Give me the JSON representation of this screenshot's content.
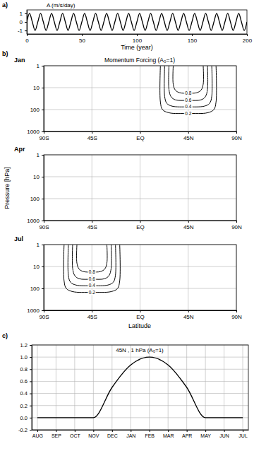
{
  "chart_data": [
    {
      "type": "line",
      "annotations": [
        "a)"
      ],
      "title": "A    (m/s/day)",
      "xlabel": "Time (year)",
      "x": [
        0,
        2.5,
        5,
        7.5,
        10,
        12.5,
        15,
        17.5,
        20,
        22.5,
        25,
        27.5,
        30,
        32.5,
        35,
        37.5,
        40,
        42.5,
        45,
        47.5,
        50,
        52.5,
        55,
        57.5,
        60,
        62.5,
        65,
        67.5,
        70,
        72.5,
        75,
        77.5,
        80,
        82.5,
        85,
        87.5,
        90,
        92.5,
        95,
        97.5,
        100,
        102.5,
        105,
        107.5,
        110,
        112.5,
        115,
        117.5,
        120,
        122.5,
        125,
        127.5,
        130,
        132.5,
        135,
        137.5,
        140,
        142.5,
        145,
        147.5,
        150,
        152.5,
        155,
        157.5,
        160,
        162.5,
        165,
        167.5,
        170,
        172.5,
        175,
        177.5,
        180,
        182.5,
        185,
        187.5,
        190,
        192.5,
        195,
        197.5,
        200
      ],
      "series": [
        {
          "color": "#000000",
          "values": [
            0,
            1,
            0,
            -1,
            0,
            1,
            0,
            -1,
            0,
            1,
            0,
            -1,
            0,
            1,
            0,
            -1,
            0,
            1,
            0,
            -1,
            0,
            1,
            0,
            -1,
            0,
            1,
            0,
            -1,
            0,
            1,
            0,
            -1,
            0,
            1,
            0,
            -1,
            0,
            1,
            0,
            -1,
            0,
            1,
            0,
            -1,
            0,
            1,
            0,
            -1,
            0,
            1,
            0,
            -1,
            0,
            1,
            0,
            -1,
            0,
            1,
            0,
            -1,
            0,
            1,
            0,
            -1,
            0,
            1,
            0,
            -1,
            0,
            1,
            0,
            -1,
            0,
            1,
            0,
            -1,
            0,
            1,
            0,
            -1,
            0
          ]
        }
      ],
      "xlim": [
        0,
        200
      ],
      "xticks": [
        0,
        50,
        100,
        150,
        200
      ],
      "ylim": [
        -1.4,
        1.4
      ],
      "yticks": [
        -1,
        0,
        1
      ],
      "grid": false
    },
    {
      "type": "contour",
      "annotations": [
        "b)"
      ],
      "subtitle": "Jan",
      "title": "Momentum Forcing (A₀=1)",
      "color": "#000000",
      "xlim": [
        -90,
        90
      ],
      "xticks": [
        {
          "value": -90,
          "label": "90S"
        },
        {
          "value": -45,
          "label": "45S"
        },
        {
          "value": 0,
          "label": "EQ"
        },
        {
          "value": 45,
          "label": "45N"
        },
        {
          "value": 90,
          "label": "90N"
        }
      ],
      "ylim": [
        1000,
        1
      ],
      "yticks": [
        1,
        10,
        100,
        1000
      ],
      "log": "y",
      "grid": true,
      "contours": [
        {
          "level": 0.8,
          "x": [
            31,
            31,
            33,
            37,
            45,
            53,
            57,
            59,
            59
          ],
          "y": [
            1,
            7,
            13,
            17,
            18,
            17,
            13,
            7,
            1
          ]
        },
        {
          "level": 0.6,
          "x": [
            27,
            27,
            29,
            33,
            45,
            57,
            61,
            63,
            63
          ],
          "y": [
            1,
            12,
            26,
            36,
            38,
            36,
            26,
            12,
            1
          ]
        },
        {
          "level": 0.4,
          "x": [
            23,
            23,
            25,
            30,
            45,
            60,
            65,
            67,
            67
          ],
          "y": [
            1,
            25,
            52,
            70,
            75,
            70,
            52,
            25,
            1
          ]
        },
        {
          "level": 0.2,
          "x": [
            19,
            19,
            21,
            27,
            45,
            63,
            69,
            71,
            71
          ],
          "y": [
            1,
            45,
            100,
            140,
            150,
            140,
            100,
            45,
            1
          ]
        }
      ]
    },
    {
      "type": "contour",
      "subtitle": "Apr",
      "ylabel": "Pressure [hPa]",
      "color": "#000000",
      "xlim": [
        -90,
        90
      ],
      "xticks": [
        {
          "value": -90,
          "label": "90S"
        },
        {
          "value": -45,
          "label": "45S"
        },
        {
          "value": 0,
          "label": "EQ"
        },
        {
          "value": 45,
          "label": "45N"
        },
        {
          "value": 90,
          "label": "90N"
        }
      ],
      "ylim": [
        1000,
        1
      ],
      "yticks": [
        1,
        10,
        100,
        1000
      ],
      "log": "y",
      "grid": true,
      "contours": []
    },
    {
      "type": "contour",
      "subtitle": "Jul",
      "xlabel": "Latitude",
      "color": "#000000",
      "xlim": [
        -90,
        90
      ],
      "xticks": [
        {
          "value": -90,
          "label": "90S"
        },
        {
          "value": -45,
          "label": "45S"
        },
        {
          "value": 0,
          "label": "EQ"
        },
        {
          "value": 45,
          "label": "45N"
        },
        {
          "value": 90,
          "label": "90N"
        }
      ],
      "ylim": [
        1000,
        1
      ],
      "yticks": [
        1,
        10,
        100,
        1000
      ],
      "log": "y",
      "grid": true,
      "contours": [
        {
          "level": 0.8,
          "x": [
            -31,
            -31,
            -33,
            -37,
            -45,
            -53,
            -57,
            -59,
            -59
          ],
          "y": [
            1,
            7,
            13,
            17,
            18,
            17,
            13,
            7,
            1
          ]
        },
        {
          "level": 0.6,
          "x": [
            -27,
            -27,
            -29,
            -33,
            -45,
            -57,
            -61,
            -63,
            -63
          ],
          "y": [
            1,
            12,
            26,
            36,
            38,
            36,
            26,
            12,
            1
          ]
        },
        {
          "level": 0.4,
          "x": [
            -23,
            -23,
            -25,
            -30,
            -45,
            -60,
            -65,
            -67,
            -67
          ],
          "y": [
            1,
            25,
            52,
            70,
            75,
            70,
            52,
            25,
            1
          ]
        },
        {
          "level": 0.2,
          "x": [
            -19,
            -19,
            -21,
            -27,
            -45,
            -63,
            -69,
            -71,
            -71
          ],
          "y": [
            1,
            45,
            100,
            140,
            150,
            140,
            100,
            45,
            1
          ]
        }
      ]
    },
    {
      "type": "line",
      "annotations": [
        "c)"
      ],
      "title": "45N , 1 hPa  (A₀=1)",
      "categories": [
        "AUG",
        "SEP",
        "OCT",
        "NOV",
        "DEC",
        "JAN",
        "FEB",
        "MAR",
        "APR",
        "MAY",
        "JUN",
        "JUL"
      ],
      "series": [
        {
          "color": "#000000",
          "values": [
            0,
            0,
            0,
            0,
            0.5,
            0.87,
            1.0,
            0.87,
            0.5,
            0,
            0,
            0
          ]
        }
      ],
      "ylim": [
        -0.2,
        1.2
      ],
      "yticks": [
        -0.2,
        {
          "value": 0,
          "label": "0.0"
        },
        0.2,
        0.4,
        0.6,
        0.8,
        {
          "value": 1,
          "label": "1.0"
        },
        1.2
      ],
      "grid": true
    }
  ]
}
